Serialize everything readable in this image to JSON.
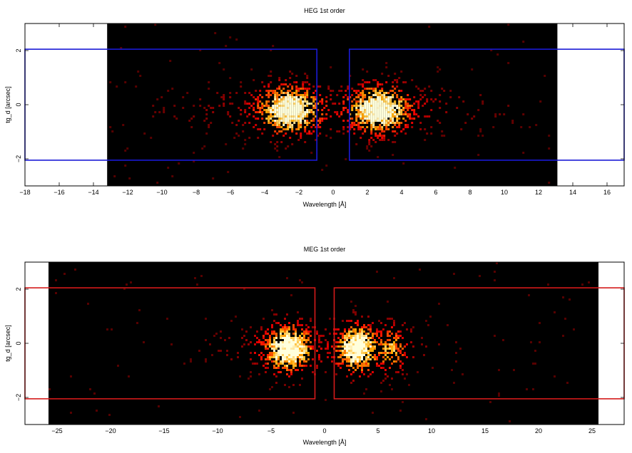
{
  "chart_data": [
    {
      "type": "heatmap",
      "title": "HEG 1st order",
      "xlabel": "Wavelength [Å]",
      "ylabel": "tg_d [arcsec]",
      "xlim": [
        -18,
        17
      ],
      "ylim": [
        -3,
        3
      ],
      "xticks": [
        -18,
        -16,
        -14,
        -12,
        -10,
        -8,
        -6,
        -4,
        -2,
        0,
        2,
        4,
        6,
        8,
        10,
        12,
        14,
        16
      ],
      "yticks": [
        -2,
        0,
        2
      ],
      "data_extent_x": [
        -13.2,
        13.1
      ],
      "colormap": "black-red-yellow-white",
      "extraction_box_color": "#1a1ad6",
      "extraction_regions": [
        {
          "x": [
            -20,
            -0.95
          ],
          "y": [
            -2.05,
            2.05
          ]
        },
        {
          "x": [
            0.95,
            20
          ],
          "y": [
            -2.05,
            2.05
          ]
        }
      ],
      "peaks": [
        {
          "x": -2.6,
          "y": -0.2,
          "sigma_x": 1.1,
          "amp": 1.0
        },
        {
          "x": 2.6,
          "y": -0.2,
          "sigma_x": 1.1,
          "amp": 1.0
        }
      ],
      "seed": 1
    },
    {
      "type": "heatmap",
      "title": "MEG 1st order",
      "xlabel": "Wavelength [Å]",
      "ylabel": "tg_d [arcsec]",
      "xlim": [
        -28,
        28
      ],
      "ylim": [
        -3,
        3
      ],
      "xticks": [
        -25,
        -20,
        -15,
        -10,
        -5,
        0,
        5,
        10,
        15,
        20,
        25
      ],
      "yticks": [
        -2,
        0,
        2
      ],
      "data_extent_x": [
        -25.8,
        25.6
      ],
      "colormap": "black-red-yellow-white",
      "extraction_box_color": "#d41a1a",
      "extraction_regions": [
        {
          "x": [
            -30,
            -0.9
          ],
          "y": [
            -2.05,
            2.05
          ]
        },
        {
          "x": [
            0.9,
            30
          ],
          "y": [
            -2.05,
            2.05
          ]
        }
      ],
      "peaks": [
        {
          "x": -3.5,
          "y": -0.1,
          "sigma_x": 1.4,
          "amp": 1.0
        },
        {
          "x": 3.0,
          "y": -0.1,
          "sigma_x": 1.2,
          "amp": 1.0
        },
        {
          "x": 6.0,
          "y": -0.1,
          "sigma_x": 1.0,
          "amp": 0.55
        }
      ],
      "seed": 7
    }
  ]
}
